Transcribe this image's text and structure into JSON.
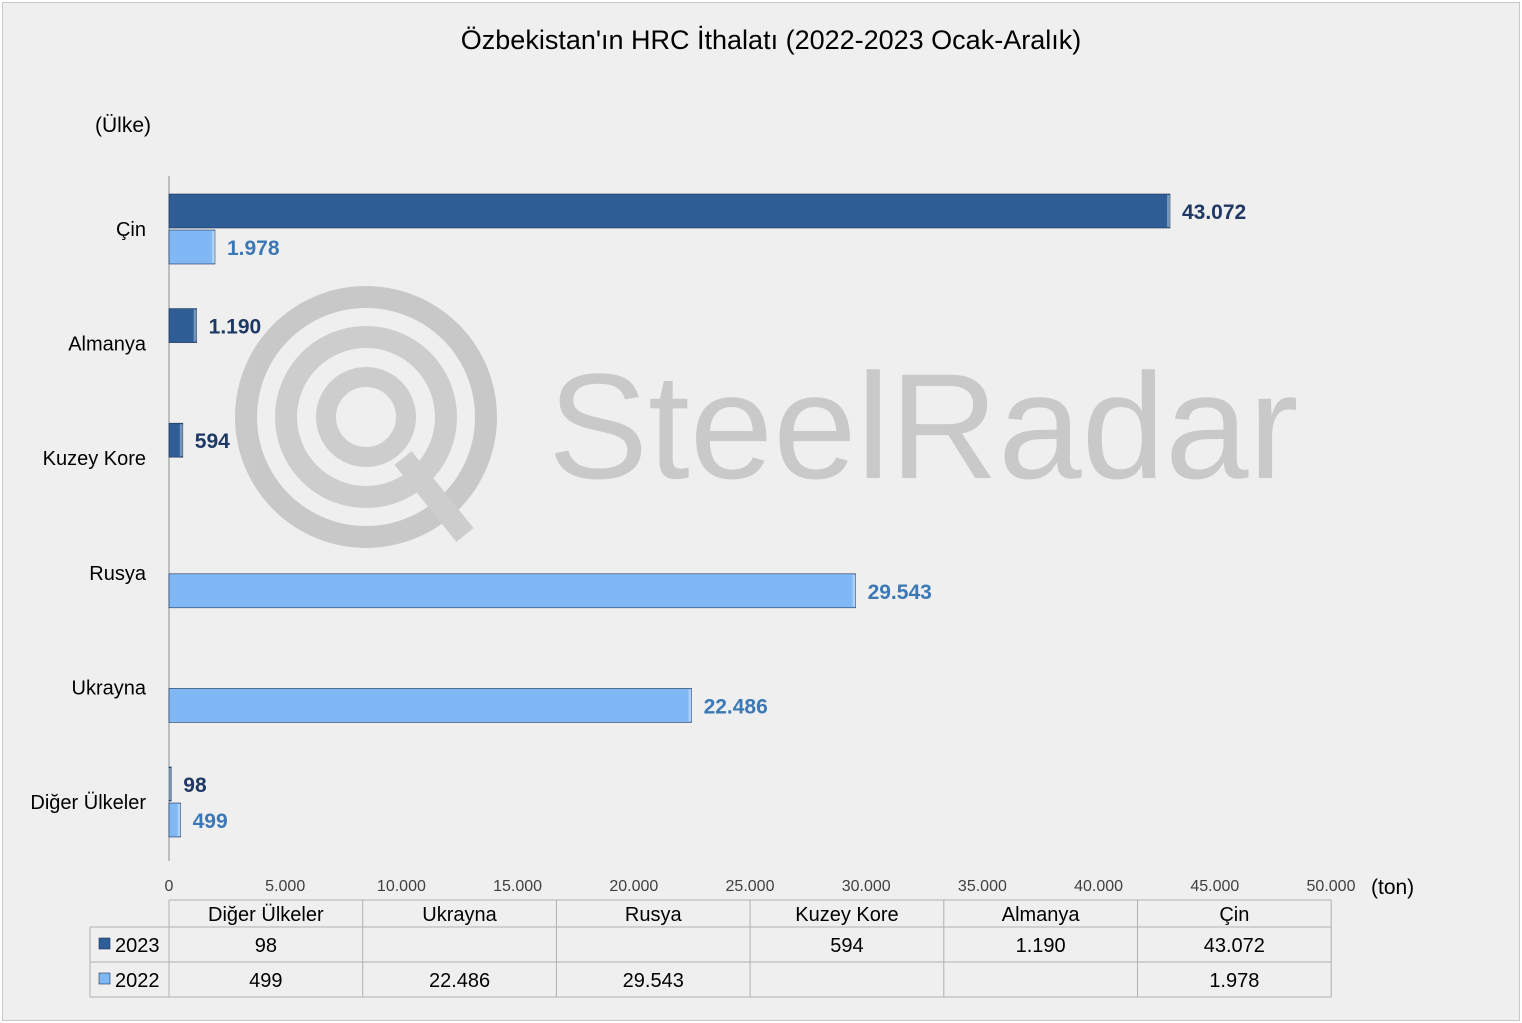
{
  "chart_data": {
    "type": "bar",
    "orientation": "horizontal",
    "title": "Özbekistan'ın HRC İthalatı (2022-2023 Ocak-Aralık)",
    "ylabel": "(Ülke)",
    "xlabel": "(ton)",
    "xlim": [
      0,
      50000
    ],
    "x_ticks": [
      "0",
      "5.000",
      "10.000",
      "15.000",
      "20.000",
      "25.000",
      "30.000",
      "35.000",
      "40.000",
      "45.000",
      "50.000"
    ],
    "categories": [
      "Çin",
      "Almanya",
      "Kuzey Kore",
      "Rusya",
      "Ukrayna",
      "Diğer Ülkeler"
    ],
    "series": [
      {
        "name": "2023",
        "color": "#2f5d96",
        "label_color": "#1f3864",
        "values": [
          43072,
          1190,
          594,
          null,
          null,
          98
        ],
        "labels": [
          "43.072",
          "1.190",
          "594",
          "",
          "",
          "98"
        ]
      },
      {
        "name": "2022",
        "color": "#7fb8f5",
        "label_color": "#3b78b5",
        "values": [
          1978,
          null,
          null,
          29543,
          22486,
          499
        ],
        "labels": [
          "1.978",
          "",
          "",
          "29.543",
          "22.486",
          "499"
        ]
      }
    ],
    "grid": false,
    "legend": "data-table-below",
    "watermark": "SteelRadar",
    "data_table": {
      "columns": [
        "Diğer Ülkeler",
        "Ukrayna",
        "Rusya",
        "Kuzey Kore",
        "Almanya",
        "Çin"
      ],
      "rows": [
        {
          "series": "2023",
          "cells": [
            "98",
            "",
            "",
            "594",
            "1.190",
            "43.072"
          ]
        },
        {
          "series": "2022",
          "cells": [
            "499",
            "22.486",
            "29.543",
            "",
            "",
            "1.978"
          ]
        }
      ]
    }
  }
}
